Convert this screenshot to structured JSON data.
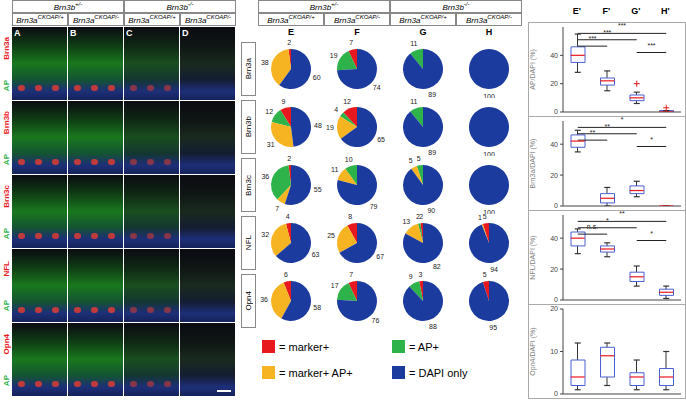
{
  "figure": {
    "genotypes_top": [
      {
        "gene": "Brn3b",
        "allele": "+/-"
      },
      {
        "gene": "Brn3b",
        "allele": "-/-"
      }
    ],
    "genotypes_bottom": [
      {
        "gene": "Brn3a",
        "allele": "CKOAP/+"
      },
      {
        "gene": "Brn3a",
        "allele": "CKOAP/-"
      }
    ],
    "image_panels": [
      "A",
      "B",
      "C",
      "D"
    ],
    "pie_panels": [
      "E",
      "F",
      "G",
      "H"
    ],
    "rows": [
      "Brn3a",
      "Brn3b",
      "Brn3c",
      "NFL",
      "Opn4"
    ],
    "reporter": "AP",
    "legend": [
      {
        "label": "= marker+",
        "color": "#e8191e"
      },
      {
        "label": "= AP+",
        "color": "#2db34a"
      },
      {
        "label": "= marker+ AP+",
        "color": "#f7b422"
      },
      {
        "label": "= DAPI only",
        "color": "#1c3b9e"
      }
    ]
  },
  "chart_data": [
    {
      "type": "pie",
      "row": "Brn3a",
      "column": "E",
      "values": [
        2,
        null,
        38,
        60
      ]
    },
    {
      "type": "pie",
      "row": "Brn3a",
      "column": "F",
      "values": [
        7,
        19,
        null,
        74
      ]
    },
    {
      "type": "pie",
      "row": "Brn3a",
      "column": "G",
      "values": [
        null,
        11,
        null,
        89
      ]
    },
    {
      "type": "pie",
      "row": "Brn3a",
      "column": "H",
      "values": [
        null,
        null,
        null,
        100
      ]
    },
    {
      "type": "pie",
      "row": "Brn3b",
      "column": "E",
      "values": [
        9,
        12,
        31,
        48
      ]
    },
    {
      "type": "pie",
      "row": "Brn3b",
      "column": "F",
      "values": [
        12,
        4,
        19,
        65
      ]
    },
    {
      "type": "pie",
      "row": "Brn3b",
      "column": "G",
      "values": [
        null,
        11,
        null,
        89
      ]
    },
    {
      "type": "pie",
      "row": "Brn3b",
      "column": "H",
      "values": [
        null,
        null,
        null,
        100
      ]
    },
    {
      "type": "pie",
      "row": "Brn3c",
      "column": "E",
      "values": [
        2,
        36,
        7,
        55
      ]
    },
    {
      "type": "pie",
      "row": "Brn3c",
      "column": "F",
      "values": [
        null,
        10,
        11,
        79
      ]
    },
    {
      "type": "pie",
      "row": "Brn3c",
      "column": "G",
      "values": [
        null,
        5,
        5,
        90
      ]
    },
    {
      "type": "pie",
      "row": "Brn3c",
      "column": "H",
      "values": [
        null,
        null,
        null,
        100
      ]
    },
    {
      "type": "pie",
      "row": "NFL",
      "column": "E",
      "values": [
        4,
        null,
        32,
        63
      ]
    },
    {
      "type": "pie",
      "row": "NFL",
      "column": "F",
      "values": [
        8,
        null,
        25,
        67
      ]
    },
    {
      "type": "pie",
      "row": "NFL",
      "column": "G",
      "values": [
        2,
        2,
        13,
        82
      ]
    },
    {
      "type": "pie",
      "row": "NFL",
      "column": "H",
      "values": [
        5,
        null,
        1,
        94
      ]
    },
    {
      "type": "pie",
      "row": "Opn4",
      "column": "E",
      "values": [
        6,
        null,
        36,
        58
      ]
    },
    {
      "type": "pie",
      "row": "Opn4",
      "column": "F",
      "values": [
        7,
        17,
        null,
        76
      ]
    },
    {
      "type": "pie",
      "row": "Opn4",
      "column": "G",
      "values": [
        3,
        9,
        null,
        88
      ]
    },
    {
      "type": "pie",
      "row": "Opn4",
      "column": "H",
      "values": [
        5,
        null,
        null,
        95
      ]
    },
    {
      "type": "box",
      "y_label": "AP/DAPI (%)",
      "categories": [
        "E'",
        "F'",
        "G'",
        "H'"
      ],
      "ylim": [
        0,
        60
      ],
      "yticks": [
        0,
        20,
        40
      ],
      "tick_labels": "y",
      "boxes": [
        {
          "min": 28,
          "q1": 35,
          "median": 40,
          "q3": 46,
          "max": 55,
          "outliers": []
        },
        {
          "min": 15,
          "q1": 19,
          "median": 22,
          "q3": 24,
          "max": 29,
          "outliers": []
        },
        {
          "min": 6,
          "q1": 8,
          "median": 10,
          "q3": 12,
          "max": 14,
          "outliers": [
            20
          ]
        },
        {
          "min": 0,
          "q1": 0,
          "median": 0,
          "q3": 1,
          "max": 1,
          "outliers": [
            3
          ]
        }
      ],
      "annotations": [
        {
          "from": "E'",
          "to": "H'",
          "label": "***"
        },
        {
          "from": "E'",
          "to": "G'",
          "label": "***"
        },
        {
          "from": "E'",
          "to": "F'",
          "label": "***"
        },
        {
          "from": "G'",
          "to": "H'",
          "label": "***"
        }
      ]
    },
    {
      "type": "box",
      "y_label": "Brn3a/DAPI (%)",
      "categories": [
        "E'",
        "F'",
        "G'",
        "H'"
      ],
      "ylim": [
        0,
        55
      ],
      "yticks": [
        0,
        20,
        40
      ],
      "tick_labels": "y",
      "boxes": [
        {
          "min": 35,
          "q1": 38,
          "median": 42,
          "q3": 46,
          "max": 49,
          "outliers": []
        },
        {
          "min": 0,
          "q1": 2,
          "median": 5,
          "q3": 8,
          "max": 12,
          "outliers": []
        },
        {
          "min": 6,
          "q1": 8,
          "median": 10,
          "q3": 13,
          "max": 16,
          "outliers": []
        },
        {
          "min": 0,
          "q1": 0,
          "median": 0,
          "q3": 0,
          "max": 0,
          "outliers": []
        }
      ],
      "annotations": [
        {
          "from": "E'",
          "to": "H'",
          "label": "*"
        },
        {
          "from": "E'",
          "to": "G'",
          "label": "**"
        },
        {
          "from": "E'",
          "to": "F'",
          "label": "**"
        },
        {
          "from": "G'",
          "to": "H'",
          "label": "*"
        }
      ]
    },
    {
      "type": "box",
      "y_label": "NFL/DAPI (%)",
      "categories": [
        "E'",
        "F'",
        "G'",
        "H'"
      ],
      "ylim": [
        0,
        55
      ],
      "yticks": [
        0,
        20,
        40
      ],
      "tick_labels": "y",
      "boxes": [
        {
          "min": 30,
          "q1": 35,
          "median": 40,
          "q3": 44,
          "max": 46,
          "outliers": []
        },
        {
          "min": 28,
          "q1": 31,
          "median": 33,
          "q3": 35,
          "max": 37,
          "outliers": []
        },
        {
          "min": 9,
          "q1": 12,
          "median": 15,
          "q3": 18,
          "max": 22,
          "outliers": []
        },
        {
          "min": 1,
          "q1": 3,
          "median": 5,
          "q3": 7,
          "max": 9,
          "outliers": []
        }
      ],
      "annotations": [
        {
          "from": "E'",
          "to": "H'",
          "label": "**"
        },
        {
          "from": "E'",
          "to": "G'",
          "label": "*"
        },
        {
          "from": "E'",
          "to": "F'",
          "label": "n.s."
        },
        {
          "from": "G'",
          "to": "H'",
          "label": "*"
        }
      ]
    },
    {
      "type": "box",
      "y_label": "Opn4/DAPI (%)",
      "categories": [
        "E'",
        "F'",
        "G'",
        "H'"
      ],
      "ylim": [
        0,
        20
      ],
      "yticks": [
        0,
        10,
        20
      ],
      "tick_labels": "y",
      "boxes": [
        {
          "min": 1,
          "q1": 2,
          "median": 4,
          "q3": 8,
          "max": 12,
          "outliers": []
        },
        {
          "min": 2,
          "q1": 4,
          "median": 9,
          "q3": 11,
          "max": 12,
          "outliers": []
        },
        {
          "min": 1,
          "q1": 2,
          "median": 4,
          "q3": 5,
          "max": 8,
          "outliers": []
        },
        {
          "min": 1,
          "q1": 2,
          "median": 4,
          "q3": 6,
          "max": 10,
          "outliers": []
        }
      ],
      "annotations": []
    }
  ]
}
